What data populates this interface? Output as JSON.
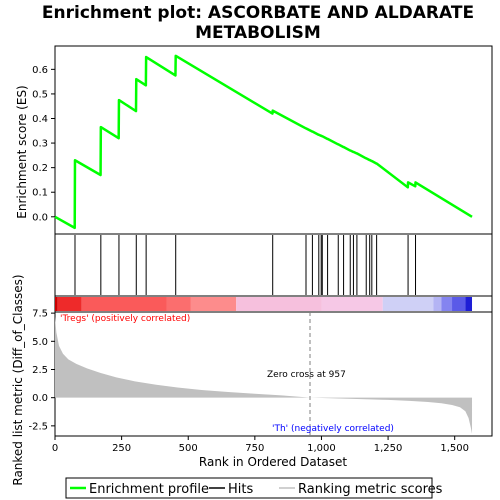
{
  "chart_data": {
    "type": "line",
    "title_line1": "Enrichment plot: ASCORBATE AND ALDARATE",
    "title_line2": "METABOLISM",
    "xlabel": "Rank in Ordered Dataset",
    "ylabel_top": "Enrichment score (ES)",
    "ylabel_bottom": "Ranked list metric (Diff_of_Classes)",
    "xlim": [
      0,
      1640
    ],
    "x_ticks": [
      0,
      250,
      500,
      750,
      1000,
      1250,
      1500
    ],
    "x_tick_labels": [
      "0",
      "250",
      "500",
      "750",
      "1,000",
      "1,250",
      "1,500"
    ],
    "es_ylim": [
      -0.07,
      0.695
    ],
    "es_ticks": [
      0.0,
      0.1,
      0.2,
      0.3,
      0.4,
      0.5,
      0.6
    ],
    "es_tick_labels": [
      "0.0",
      "0.1",
      "0.2",
      "0.3",
      "0.4",
      "0.5",
      "0.6"
    ],
    "metric_ylim": [
      -3.4,
      7.6
    ],
    "metric_ticks": [
      -2.5,
      0.0,
      2.5,
      5.0,
      7.5
    ],
    "metric_tick_labels": [
      "-2.5",
      "0.0",
      "2.5",
      "5.0",
      "7.5"
    ],
    "n_genes": 1565,
    "hits": [
      75,
      172,
      240,
      305,
      342,
      453,
      817,
      942,
      966,
      990,
      999,
      1003,
      1023,
      1063,
      1083,
      1108,
      1120,
      1133,
      1168,
      1181,
      1189,
      1207,
      1325,
      1353
    ],
    "es_profile": {
      "x": [
        0,
        74,
        75,
        171,
        172,
        239,
        240,
        304,
        305,
        341,
        342,
        452,
        453,
        816,
        817,
        941,
        942,
        965,
        966,
        989,
        990,
        998,
        999,
        1002,
        1003,
        1022,
        1023,
        1062,
        1063,
        1082,
        1083,
        1107,
        1108,
        1119,
        1120,
        1132,
        1133,
        1167,
        1168,
        1180,
        1181,
        1188,
        1189,
        1206,
        1207,
        1324,
        1325,
        1352,
        1353,
        1565
      ],
      "y": [
        0.0,
        -0.045,
        0.23,
        0.17,
        0.365,
        0.32,
        0.475,
        0.43,
        0.56,
        0.535,
        0.65,
        0.575,
        0.655,
        0.42,
        0.432,
        0.36,
        0.36,
        0.347,
        0.347,
        0.334,
        0.334,
        0.33,
        0.33,
        0.328,
        0.328,
        0.317,
        0.317,
        0.295,
        0.295,
        0.284,
        0.284,
        0.27,
        0.27,
        0.264,
        0.264,
        0.258,
        0.258,
        0.238,
        0.238,
        0.231,
        0.231,
        0.227,
        0.227,
        0.217,
        0.217,
        0.12,
        0.14,
        0.124,
        0.14,
        0.0
      ]
    },
    "metric_profile": {
      "x": [
        0,
        5,
        15,
        30,
        50,
        80,
        120,
        170,
        230,
        300,
        380,
        460,
        550,
        650,
        750,
        850,
        957,
        1050,
        1150,
        1250,
        1330,
        1400,
        1450,
        1490,
        1520,
        1540,
        1552,
        1560,
        1565
      ],
      "y": [
        7.2,
        5.8,
        4.6,
        3.9,
        3.4,
        3.0,
        2.6,
        2.2,
        1.8,
        1.45,
        1.15,
        0.9,
        0.68,
        0.5,
        0.35,
        0.2,
        0.0,
        -0.06,
        -0.13,
        -0.2,
        -0.28,
        -0.38,
        -0.5,
        -0.65,
        -0.85,
        -1.2,
        -1.8,
        -2.6,
        -3.2
      ]
    },
    "heatmap_segments": [
      {
        "x0": 0,
        "x1": 10,
        "color": "#cc0000"
      },
      {
        "x0": 10,
        "x1": 100,
        "color": "#ee2a2a"
      },
      {
        "x0": 100,
        "x1": 420,
        "color": "#fa5a5a"
      },
      {
        "x0": 420,
        "x1": 510,
        "color": "#fb6e6e"
      },
      {
        "x0": 510,
        "x1": 680,
        "color": "#fd8c8c"
      },
      {
        "x0": 680,
        "x1": 1000,
        "color": "#f6c0dd"
      },
      {
        "x0": 1000,
        "x1": 1230,
        "color": "#f6c8e6"
      },
      {
        "x0": 1230,
        "x1": 1420,
        "color": "#cfd0f6"
      },
      {
        "x0": 1420,
        "x1": 1450,
        "color": "#b4b4f4"
      },
      {
        "x0": 1450,
        "x1": 1490,
        "color": "#8484f0"
      },
      {
        "x0": 1490,
        "x1": 1540,
        "color": "#5a5ae8"
      },
      {
        "x0": 1540,
        "x1": 1565,
        "color": "#1e1ed6"
      }
    ],
    "annotations": {
      "positive": "'Tregs' (positively correlated)",
      "negative": "'Th' (negatively correlated)",
      "zero_cross": "Zero cross at 957"
    },
    "zero_cross": 957,
    "legend": {
      "placement": "bottom",
      "items": [
        "Enrichment profile",
        "Hits",
        "Ranking metric scores"
      ]
    },
    "colors": {
      "es_line": "#00ff00",
      "hit": "#000000",
      "metric_fill": "#c0c0c0",
      "positive_text": "#ff0000",
      "negative_text": "#0000ff"
    },
    "grid": false
  }
}
